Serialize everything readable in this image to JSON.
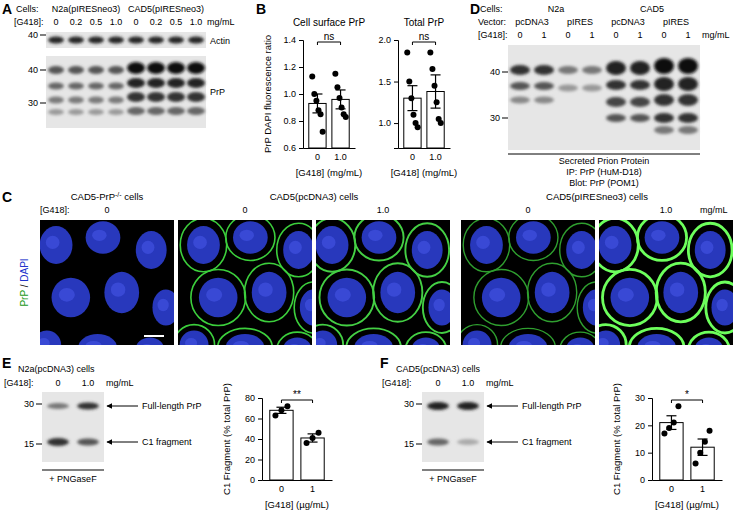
{
  "chart_data": [
    {
      "type": "bar",
      "title": "Cell surface PrP",
      "ylabel": "PrP DAPI fluorescence ratio",
      "xlabel": "[G418] (mg/mL)",
      "categories": [
        "0",
        "1.0"
      ],
      "values": [
        0.93,
        0.96
      ],
      "errors": [
        0.07,
        0.07
      ],
      "points": [
        [
          1.13,
          1.0,
          0.95,
          0.88,
          0.85,
          0.72
        ],
        [
          1.15,
          1.05,
          0.97,
          0.9,
          0.85,
          0.83
        ]
      ],
      "color": "#ffffff",
      "ylim": [
        0.6,
        1.4
      ],
      "yticks": [
        0.6,
        0.8,
        {
          "value": 1,
          "label": "1.0"
        },
        1.2,
        1.4
      ],
      "annotation": "ns"
    },
    {
      "type": "bar",
      "title": "Total PrP",
      "xlabel": "[G418] (mg/mL)",
      "categories": [
        "0",
        "1.0"
      ],
      "values": [
        1.3,
        1.38
      ],
      "errors": [
        0.15,
        0.2
      ],
      "points": [
        [
          1.85,
          1.5,
          1.3,
          1.1,
          1.0,
          0.95
        ],
        [
          1.85,
          1.65,
          1.45,
          1.25,
          1.05,
          1.0
        ]
      ],
      "color": "#ffffff",
      "ylim": [
        0.7,
        2.0
      ],
      "yticks": [
        {
          "value": 1,
          "label": "1.0"
        },
        1.5,
        {
          "value": 2,
          "label": "2.0"
        }
      ],
      "annotation": "ns"
    },
    {
      "type": "bar",
      "ylabel": "C1 Fragment (% total PrP)",
      "xlabel": "[G418] (µg/mL)",
      "categories": [
        "0",
        "1"
      ],
      "values": [
        68,
        41
      ],
      "errors": [
        3,
        4
      ],
      "points": [
        [
          63,
          68,
          72
        ],
        [
          36,
          41,
          46
        ]
      ],
      "color": "#ffffff",
      "ylim": [
        0,
        80
      ],
      "yticks": [
        0,
        20,
        40,
        60,
        80
      ],
      "annotation": "**"
    },
    {
      "type": "bar",
      "ylabel": "C1 Fragment (% total PrP)",
      "xlabel": "[G418] (µg/mL)",
      "categories": [
        "0",
        "1"
      ],
      "values": [
        21,
        12
      ],
      "errors": [
        2.5,
        3
      ],
      "points": [
        [
          17,
          19,
          21,
          27
        ],
        [
          6,
          10,
          14,
          18
        ]
      ],
      "color": "#ffffff",
      "ylim": [
        0,
        30
      ],
      "yticks": [
        0,
        10,
        20,
        30
      ],
      "annotation": "*"
    }
  ],
  "figure": {
    "A": {
      "label": "A",
      "cells_label": "Cells:",
      "cell_lines": [
        "N2a(pIRESneo3)",
        "CAD5(pIRESneo3)"
      ],
      "g418_label": "[G418]:",
      "g418": [
        "0",
        "0.2",
        "0.5",
        "1.0",
        "0",
        "0.2",
        "0.5",
        "1.0"
      ],
      "unit": "mg/mL",
      "blots": [
        {
          "name": "Actin",
          "markers": [
            40
          ]
        },
        {
          "name": "PrP",
          "markers": [
            40,
            30
          ]
        }
      ]
    },
    "B": {
      "label": "B"
    },
    "C": {
      "label": "C",
      "g418_label": "[G418]:",
      "unit": "mg/mL",
      "stain": [
        "PrP",
        " / ",
        "DAPI"
      ],
      "groups": [
        {
          "parts": [
            "CAD5-PrP",
            "-/-",
            " cells"
          ],
          "g418": [
            "0"
          ]
        },
        {
          "parts": [
            "CAD5(pcDNA3) cells"
          ],
          "g418": [
            "0",
            "1.0"
          ]
        },
        {
          "parts": [
            "CAD5(pIRESneo3) cells"
          ],
          "g418": [
            "0",
            "1.0"
          ]
        }
      ]
    },
    "D": {
      "label": "D",
      "cells_label": "Cells:",
      "cell_lines": [
        "N2a",
        "CAD5"
      ],
      "vector_label": "Vector:",
      "vectors": [
        "pcDNA3",
        "pIRES",
        "pcDNA3",
        "pIRES"
      ],
      "g418_label": "[G418]:",
      "g418": [
        "0",
        "1",
        "0",
        "1",
        "0",
        "1",
        "0",
        "1"
      ],
      "unit": "mg/mL",
      "markers": [
        40,
        30
      ],
      "caption": "Secreted Prion Protein",
      "ip": "IP: PrP (HuM-D18)",
      "blot": "Blot: PrP (POM1)"
    },
    "E": {
      "label": "E",
      "title": "N2a(pcDNA3) cells",
      "g418_label": "[G418]:",
      "g418": [
        "0",
        "1.0"
      ],
      "unit": "mg/mL",
      "markers": [
        30,
        15
      ],
      "bands": [
        "Full-length PrP",
        "C1 fragment"
      ],
      "treatment": "+ PNGaseF"
    },
    "F": {
      "label": "F",
      "title": "CAD5(pcDNA3) cells",
      "g418_label": "[G418]:",
      "g418": [
        "0",
        "1.0"
      ],
      "unit": "mg/mL",
      "markers": [
        30,
        15
      ],
      "bands": [
        "Full-length PrP",
        "C1 fragment"
      ],
      "treatment": "+ PNGaseF"
    }
  }
}
